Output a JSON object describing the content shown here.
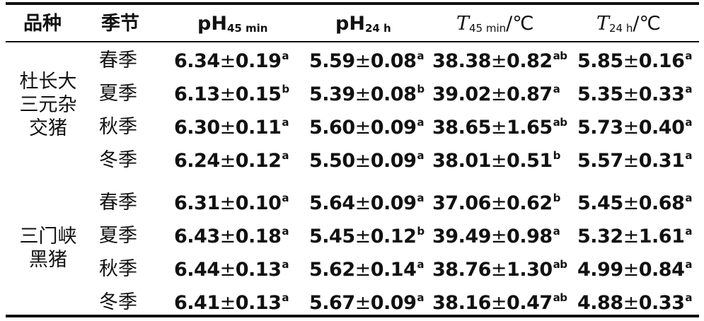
{
  "table": {
    "header": {
      "breed": "品种",
      "season": "季节",
      "ph45": {
        "main": "pH",
        "sub": "45 min"
      },
      "ph24": {
        "main": "pH",
        "sub": "24 h"
      },
      "t45": {
        "main": "T",
        "sub": "45 min",
        "unit": "/℃"
      },
      "t24": {
        "main": "T",
        "sub": "24 h",
        "unit": "/℃"
      }
    },
    "groups": [
      {
        "breed_lines": [
          "杜长大",
          "三元杂",
          "交猪"
        ],
        "rows": [
          {
            "season": "春季",
            "ph45": "6.34",
            "ph45_sd": "0.19",
            "ph45_sig": "a",
            "ph24": "5.59",
            "ph24_sd": "0.08",
            "ph24_sig": "a",
            "t45": "38.38",
            "t45_sd": "0.82",
            "t45_sig": "ab",
            "t24": "5.85",
            "t24_sd": "0.16",
            "t24_sig": "a"
          },
          {
            "season": "夏季",
            "ph45": "6.13",
            "ph45_sd": "0.15",
            "ph45_sig": "b",
            "ph24": "5.39",
            "ph24_sd": "0.08",
            "ph24_sig": "b",
            "t45": "39.02",
            "t45_sd": "0.87",
            "t45_sig": "a",
            "t24": "5.35",
            "t24_sd": "0.33",
            "t24_sig": "a"
          },
          {
            "season": "秋季",
            "ph45": "6.30",
            "ph45_sd": "0.11",
            "ph45_sig": "a",
            "ph24": "5.60",
            "ph24_sd": "0.09",
            "ph24_sig": "a",
            "t45": "38.65",
            "t45_sd": "1.65",
            "t45_sig": "ab",
            "t24": "5.73",
            "t24_sd": "0.40",
            "t24_sig": "a"
          },
          {
            "season": "冬季",
            "ph45": "6.24",
            "ph45_sd": "0.12",
            "ph45_sig": "a",
            "ph24": "5.50",
            "ph24_sd": "0.09",
            "ph24_sig": "a",
            "t45": "38.01",
            "t45_sd": "0.51",
            "t45_sig": "b",
            "t24": "5.57",
            "t24_sd": "0.31",
            "t24_sig": "a"
          }
        ]
      },
      {
        "breed_lines": [
          "三门峡",
          "黑猪"
        ],
        "rows": [
          {
            "season": "春季",
            "ph45": "6.31",
            "ph45_sd": "0.10",
            "ph45_sig": "a",
            "ph24": "5.64",
            "ph24_sd": "0.09",
            "ph24_sig": "a",
            "t45": "37.06",
            "t45_sd": "0.62",
            "t45_sig": "b",
            "t24": "5.45",
            "t24_sd": "0.68",
            "t24_sig": "a"
          },
          {
            "season": "夏季",
            "ph45": "6.43",
            "ph45_sd": "0.18",
            "ph45_sig": "a",
            "ph24": "5.45",
            "ph24_sd": "0.12",
            "ph24_sig": "b",
            "t45": "39.49",
            "t45_sd": "0.98",
            "t45_sig": "a",
            "t24": "5.32",
            "t24_sd": "1.61",
            "t24_sig": "a"
          },
          {
            "season": "秋季",
            "ph45": "6.44",
            "ph45_sd": "0.13",
            "ph45_sig": "a",
            "ph24": "5.62",
            "ph24_sd": "0.14",
            "ph24_sig": "a",
            "t45": "38.76",
            "t45_sd": "1.30",
            "t45_sig": "ab",
            "t24": "4.99",
            "t24_sd": "0.84",
            "t24_sig": "a"
          },
          {
            "season": "冬季",
            "ph45": "6.41",
            "ph45_sd": "0.13",
            "ph45_sig": "a",
            "ph24": "5.67",
            "ph24_sd": "0.09",
            "ph24_sig": "a",
            "t45": "38.16",
            "t45_sd": "0.47",
            "t45_sig": "ab",
            "t24": "4.88",
            "t24_sd": "0.33",
            "t24_sig": "a"
          }
        ]
      }
    ],
    "pm_symbol": "±"
  }
}
